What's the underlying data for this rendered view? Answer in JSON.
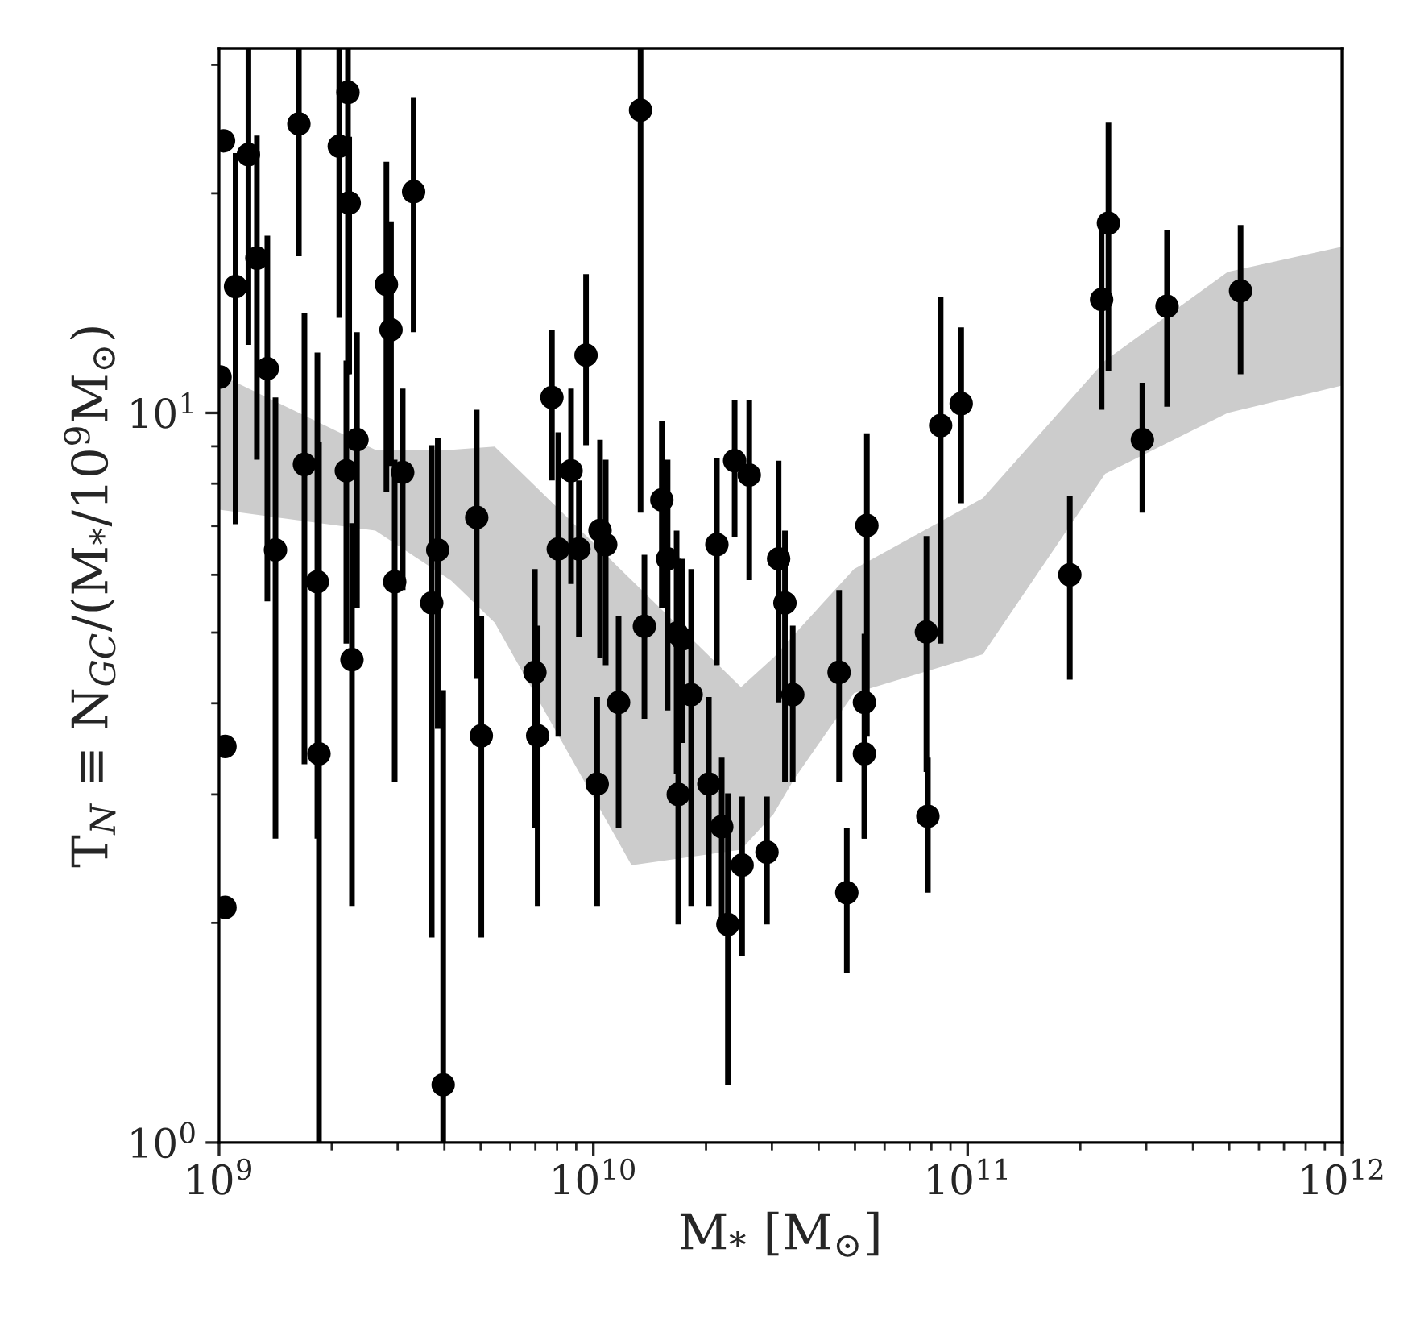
{
  "chart_data": {
    "type": "scatter",
    "xlabel": "M$_{*}$ [M$_{⊙}$]",
    "ylabel": "T$_{N}$ ≡ N$_{GC}$/(M$_{*}$/10$^{9}$M$_{⊙}$)",
    "log": "xy",
    "xlim": [
      1000000000.0,
      1000000000000.0
    ],
    "ylim": [
      1,
      31.6
    ],
    "xticks": [
      {
        "value": 1000000000.0,
        "label": "10$^{9}$"
      },
      {
        "value": 10000000000.0,
        "label": "10$^{10}$"
      },
      {
        "value": 100000000000.0,
        "label": "10$^{11}$"
      },
      {
        "value": 1000000000000.0,
        "label": "10$^{12}$"
      }
    ],
    "yticks": [
      {
        "value": 1,
        "label": "10$^{0}$"
      },
      {
        "value": 10,
        "label": "10$^{1}$"
      }
    ],
    "series": [
      {
        "type": "line",
        "color": "#cccccc",
        "values": [
          null,
          null,
          null,
          null,
          null,
          null,
          null,
          null,
          null,
          null,
          null,
          null,
          null
        ],
        "x": [
          1000000000.0,
          2616000000.0,
          4170000000.0,
          5450000000.0,
          12650000000.0,
          24800000000.0,
          30300000000.0,
          34400000000.0,
          49700000000.0,
          109800000000.0,
          233000000000.0,
          495000000000.0,
          1000000000000.0
        ],
        "lower": [
          7.37,
          6.9,
          5.89,
          5.16,
          2.4,
          2.52,
          2.82,
          3.15,
          4.13,
          4.67,
          8.25,
          10.0,
          10.9
        ],
        "upper": [
          11.3,
          8.9,
          8.9,
          8.99,
          5.9,
          4.21,
          4.62,
          4.97,
          6.11,
          7.64,
          11.8,
          15.6,
          16.9
        ]
      },
      {
        "color": "#000000",
        "marker": "circle",
        "x": [
          1028000000.0,
          1006000000.0,
          1037000000.0,
          1037000000.0,
          1107000000.0,
          1198000000.0,
          1262000000.0,
          1346000000.0,
          1415000000.0,
          1634000000.0,
          1691000000.0,
          1831000000.0,
          1849000000.0,
          2095000000.0,
          2210000000.0,
          2227000000.0,
          2188000000.0,
          2265000000.0,
          2336000000.0,
          2800000000.0,
          2880000000.0,
          2946000000.0,
          3095000000.0,
          3310000000.0,
          3700000000.0,
          3840000000.0,
          3970000000.0,
          4880000000.0,
          5020000000.0,
          6980000000.0,
          7100000000.0,
          7750000000.0,
          8060000000.0,
          8720000000.0,
          9150000000.0,
          9560000000.0,
          10420000000.0,
          10790000000.0,
          10240000000.0,
          11680000000.0,
          13370000000.0,
          13690000000.0,
          15240000000.0,
          15790000000.0,
          16690000000.0,
          17300000000.0,
          16860000000.0,
          18250000000.0,
          20350000000.0,
          21380000000.0,
          22030000000.0,
          22880000000.0,
          23850000000.0,
          24970000000.0,
          26090000000.0,
          29100000000.0,
          31260000000.0,
          32500000000.0,
          34100000000.0,
          45350000000.0,
          47550000000.0,
          53000000000.0,
          53000000000.0,
          53800000000.0,
          77600000000.0,
          78300000000.0,
          84700000000.0,
          96100000000.0,
          187500000000.0,
          228000000000.0,
          237800000000.0,
          293000000000.0,
          341000000000.0,
          536000000000.0
        ],
        "values": [
          23.6,
          11.2,
          3.49,
          2.1,
          14.9,
          22.6,
          16.3,
          11.5,
          6.49,
          24.9,
          8.5,
          5.87,
          3.41,
          23.2,
          27.5,
          19.4,
          8.33,
          4.59,
          9.19,
          15.0,
          13.0,
          5.87,
          8.29,
          20.1,
          5.49,
          6.49,
          1.2,
          7.19,
          3.61,
          4.41,
          3.61,
          10.5,
          6.51,
          8.33,
          6.51,
          12.0,
          6.9,
          6.6,
          3.1,
          4.01,
          26.0,
          5.1,
          7.6,
          6.31,
          4.99,
          4.9,
          3.0,
          4.11,
          3.1,
          6.6,
          2.71,
          1.99,
          8.6,
          2.4,
          8.22,
          2.5,
          6.31,
          5.49,
          4.11,
          4.41,
          2.2,
          4.01,
          3.41,
          7.01,
          5.01,
          2.8,
          9.61,
          10.3,
          6.0,
          14.3,
          18.2,
          9.19,
          14.0,
          14.7
        ],
        "errors": [
          null,
          null,
          null,
          null,
          [
            7.04,
            22.7
          ],
          [
            12.4,
            31.6
          ],
          [
            8.63,
            24.0
          ],
          [
            5.52,
            17.5
          ],
          [
            2.61,
            10.5
          ],
          [
            16.4,
            31.6
          ],
          [
            3.3,
            13.7
          ],
          [
            2.61,
            12.1
          ],
          [
            1.0,
            9.13
          ],
          [
            13.5,
            31.6
          ],
          [
            11.3,
            31.6
          ],
          [
            11.3,
            23.9
          ],
          [
            4.83,
            11.8
          ],
          [
            2.11,
            7.06
          ],
          [
            5.41,
            12.9
          ],
          [
            7.8,
            22.1
          ],
          [
            8.46,
            18.3
          ],
          [
            3.12,
            8.63
          ],
          [
            5.72,
            10.8
          ],
          [
            12.9,
            27.1
          ],
          [
            1.91,
            9.03
          ],
          [
            3.69,
            9.23
          ],
          [
            1.0,
            4.17
          ],
          [
            4.32,
            10.1
          ],
          [
            1.91,
            5.27
          ],
          [
            2.7,
            6.11
          ],
          [
            2.11,
            5.11
          ],
          [
            8.08,
            13.0
          ],
          [
            3.6,
            9.41
          ],
          [
            5.83,
            10.8
          ],
          [
            4.93,
            8.08
          ],
          [
            9.03,
            15.5
          ],
          [
            4.62,
            9.19
          ],
          [
            4.51,
            8.63
          ],
          [
            2.11,
            4.08
          ],
          [
            2.7,
            5.27
          ],
          [
            7.3,
            31.6
          ],
          [
            3.81,
            6.39
          ],
          [
            5.41,
            9.76
          ],
          [
            3.91,
            8.63
          ],
          [
            3.2,
            6.9
          ],
          [
            3.53,
            6.31
          ],
          [
            1.99,
            6.31
          ],
          [
            2.11,
            6.11
          ],
          [
            2.11,
            4.08
          ],
          [
            4.51,
            8.67
          ],
          [
            1.99,
            3.37
          ],
          [
            1.2,
            3.01
          ],
          [
            6.76,
            10.4
          ],
          [
            1.8,
            2.98
          ],
          [
            5.9,
            10.4
          ],
          [
            1.99,
            2.98
          ],
          [
            4.01,
            8.6
          ],
          [
            3.12,
            6.9
          ],
          [
            3.12,
            5.11
          ],
          [
            3.12,
            5.72
          ],
          [
            1.71,
            2.7
          ],
          [
            2.61,
            4.98
          ],
          [
            2.61,
            3.41
          ],
          [
            3.6,
            9.38
          ],
          [
            3.22,
            6.78
          ],
          [
            2.2,
            3.37
          ],
          [
            4.83,
            14.4
          ],
          [
            7.52,
            13.1
          ],
          [
            4.31,
            7.69
          ],
          [
            10.1,
            18.1
          ],
          [
            11.4,
            25.0
          ],
          [
            7.3,
            11.0
          ],
          [
            10.2,
            17.8
          ],
          [
            11.3,
            18.1
          ]
        ]
      }
    ]
  }
}
